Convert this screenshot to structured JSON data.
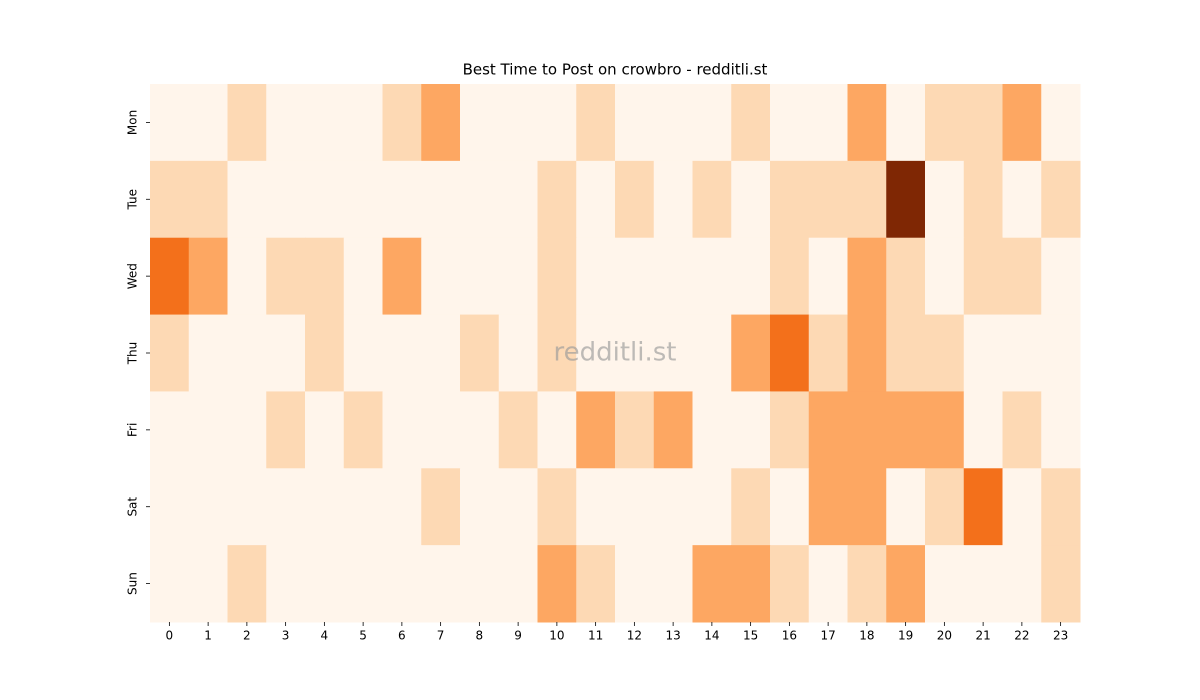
{
  "chart_data": {
    "type": "heatmap",
    "title": "Best Time to Post on crowbro - redditli.st",
    "watermark": "redditli.st",
    "x_categories": [
      0,
      1,
      2,
      3,
      4,
      5,
      6,
      7,
      8,
      9,
      10,
      11,
      12,
      13,
      14,
      15,
      16,
      17,
      18,
      19,
      20,
      21,
      22,
      23
    ],
    "y_categories": [
      "Mon",
      "Tue",
      "Wed",
      "Thu",
      "Fri",
      "Sat",
      "Sun"
    ],
    "values": [
      [
        0,
        0,
        1,
        0,
        0,
        0,
        1,
        2,
        0,
        0,
        0,
        1,
        0,
        0,
        0,
        1,
        0,
        0,
        2,
        0,
        1,
        1,
        2,
        0
      ],
      [
        1,
        1,
        0,
        0,
        0,
        0,
        0,
        0,
        0,
        0,
        1,
        0,
        1,
        0,
        1,
        0,
        1,
        1,
        1,
        5,
        0,
        1,
        0,
        1
      ],
      [
        3,
        2,
        0,
        1,
        1,
        0,
        2,
        0,
        0,
        0,
        1,
        0,
        0,
        0,
        0,
        0,
        1,
        0,
        2,
        1,
        0,
        1,
        1,
        0
      ],
      [
        1,
        0,
        0,
        0,
        1,
        0,
        0,
        0,
        1,
        0,
        1,
        0,
        0,
        0,
        0,
        2,
        3,
        1,
        2,
        1,
        1,
        0,
        0,
        0
      ],
      [
        0,
        0,
        0,
        1,
        0,
        1,
        0,
        0,
        0,
        1,
        0,
        2,
        1,
        2,
        0,
        0,
        1,
        2,
        2,
        2,
        2,
        0,
        1,
        0
      ],
      [
        0,
        0,
        0,
        0,
        0,
        0,
        0,
        1,
        0,
        0,
        1,
        0,
        0,
        0,
        0,
        1,
        0,
        2,
        2,
        0,
        1,
        3,
        0,
        1
      ],
      [
        0,
        0,
        1,
        0,
        0,
        0,
        0,
        0,
        0,
        0,
        2,
        1,
        0,
        0,
        2,
        2,
        1,
        0,
        1,
        2,
        0,
        0,
        0,
        1
      ]
    ],
    "zlim": [
      0,
      5
    ],
    "colormap": [
      "#fff5eb",
      "#fee6ce",
      "#fdd0a2",
      "#fdae6b",
      "#fd8d3c",
      "#f16913",
      "#d94801",
      "#a63603",
      "#7f2704"
    ]
  }
}
